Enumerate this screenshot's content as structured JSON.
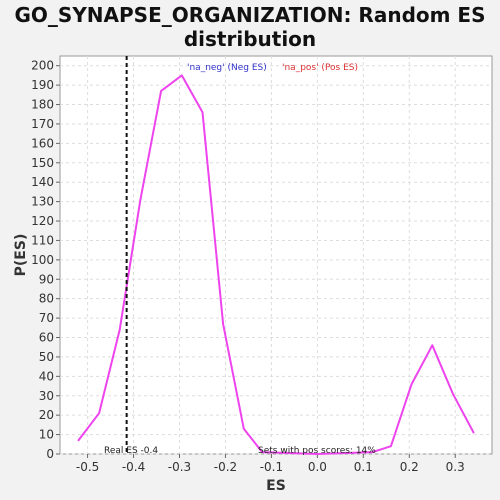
{
  "chart_data": {
    "type": "line",
    "title_line1": "GO_SYNAPSE_ORGANIZATION: Random ES",
    "title_line2": "distribution",
    "xlabel": "ES",
    "ylabel": "P(ES)",
    "xlim": [
      -0.56,
      0.38
    ],
    "ylim": [
      0,
      205
    ],
    "x_ticks": [
      -0.5,
      -0.4,
      -0.3,
      -0.2,
      -0.1,
      0.0,
      0.1,
      0.2,
      0.3
    ],
    "x_tick_labels": [
      "-0.5",
      "-0.4",
      "-0.3",
      "-0.2",
      "-0.1",
      "0.0",
      "0.1",
      "0.2",
      "0.3"
    ],
    "y_ticks": [
      0,
      10,
      20,
      30,
      40,
      50,
      60,
      70,
      80,
      90,
      100,
      110,
      120,
      130,
      140,
      150,
      160,
      170,
      180,
      190,
      200
    ],
    "grid": true,
    "legend": [
      {
        "label": "'na_neg' (Neg ES)",
        "color": "#3333cc"
      },
      {
        "label": "'na_pos' (Pos ES)",
        "color": "#dd3333"
      }
    ],
    "series": [
      {
        "color": "#ee44ee",
        "x": [
          -0.52,
          -0.475,
          -0.43,
          -0.385,
          -0.34,
          -0.295,
          -0.25,
          -0.205,
          -0.16,
          -0.12,
          0.0,
          0.12,
          0.16,
          0.205,
          0.25,
          0.295,
          0.34
        ],
        "y": [
          7,
          21,
          64,
          131,
          187,
          195,
          176,
          67,
          13,
          1,
          0,
          1,
          4,
          36,
          56,
          31,
          11
        ]
      }
    ],
    "real_es": {
      "x": -0.415,
      "label": "Real ES -0.4"
    },
    "annotation": "Sets with pos scores: 14%"
  }
}
